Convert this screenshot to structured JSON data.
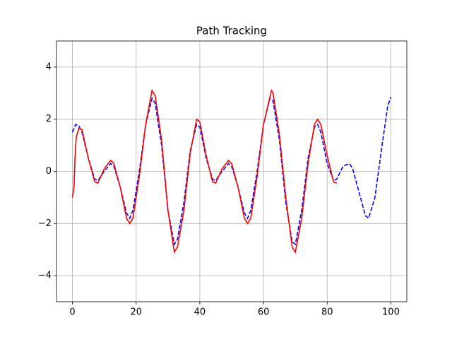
{
  "chart_data": {
    "type": "line",
    "title": "Path Tracking",
    "xlim": [
      -5,
      105
    ],
    "ylim": [
      -5,
      5
    ],
    "xticks": [
      0,
      20,
      40,
      60,
      80,
      100
    ],
    "yticks": [
      {
        "value": -4,
        "label": "−4"
      },
      {
        "value": -2,
        "label": "−2"
      },
      0,
      2,
      4
    ],
    "grid": true,
    "series": [
      {
        "color": "#0000ff",
        "linestyle": "dashed",
        "x": [
          0,
          1,
          2,
          3,
          5,
          7,
          8,
          10,
          12,
          13,
          15,
          17,
          18,
          19,
          21,
          23,
          25,
          26,
          28,
          30,
          32,
          33,
          35,
          37,
          39,
          40,
          42,
          44,
          45,
          47,
          49,
          50,
          52,
          54,
          55,
          56,
          58,
          60,
          62,
          63,
          65,
          67,
          69,
          70,
          72,
          74,
          76,
          77,
          78,
          80,
          82,
          83,
          85,
          87,
          88,
          90,
          92,
          93,
          95,
          97,
          99,
          100
        ],
        "values": [
          1.5,
          1.8,
          1.75,
          1.5,
          0.5,
          -0.3,
          -0.35,
          0,
          0.3,
          0.2,
          -0.6,
          -1.6,
          -1.8,
          -1.5,
          0,
          1.8,
          2.8,
          2.6,
          1,
          -1.5,
          -2.8,
          -2.6,
          -1.2,
          0.8,
          1.8,
          1.7,
          0.5,
          -0.3,
          -0.35,
          0,
          0.3,
          0.2,
          -0.6,
          -1.6,
          -1.8,
          -1.5,
          0,
          1.8,
          2.8,
          2.7,
          1.2,
          -1.2,
          -2.7,
          -2.8,
          -1.5,
          0.5,
          1.7,
          1.8,
          1.5,
          0.3,
          -0.35,
          -0.3,
          0.2,
          0.3,
          0.1,
          -0.8,
          -1.7,
          -1.8,
          -1,
          0.8,
          2.5,
          2.85
        ]
      },
      {
        "color": "#ff0000",
        "linestyle": "solid",
        "x": [
          0,
          0.5,
          0.8,
          1.2,
          2,
          3,
          5,
          7,
          8,
          10,
          12,
          13,
          15,
          17,
          18,
          19,
          21,
          23,
          25,
          26,
          28,
          30,
          32,
          33,
          35,
          37,
          39,
          40,
          42,
          44,
          45,
          47,
          49,
          50,
          52,
          54,
          55,
          56,
          58,
          60,
          62.5,
          63,
          65,
          67,
          69,
          70,
          72,
          74,
          76,
          77,
          78,
          80,
          82,
          83
        ],
        "values": [
          -1,
          -0.6,
          0.5,
          1.3,
          1.65,
          1.6,
          0.5,
          -0.4,
          -0.45,
          0.1,
          0.42,
          0.3,
          -0.6,
          -1.8,
          -2,
          -1.8,
          -0.2,
          1.8,
          3.1,
          2.9,
          1.2,
          -1.5,
          -3.1,
          -2.9,
          -1.5,
          0.7,
          2,
          1.9,
          0.6,
          -0.4,
          -0.45,
          0.1,
          0.42,
          0.3,
          -0.6,
          -1.8,
          -2,
          -1.8,
          -0.2,
          1.8,
          3.1,
          3,
          1.4,
          -1,
          -2.9,
          -3.1,
          -1.8,
          0.3,
          1.8,
          2,
          1.8,
          0.6,
          -0.4,
          -0.45
        ]
      }
    ]
  }
}
